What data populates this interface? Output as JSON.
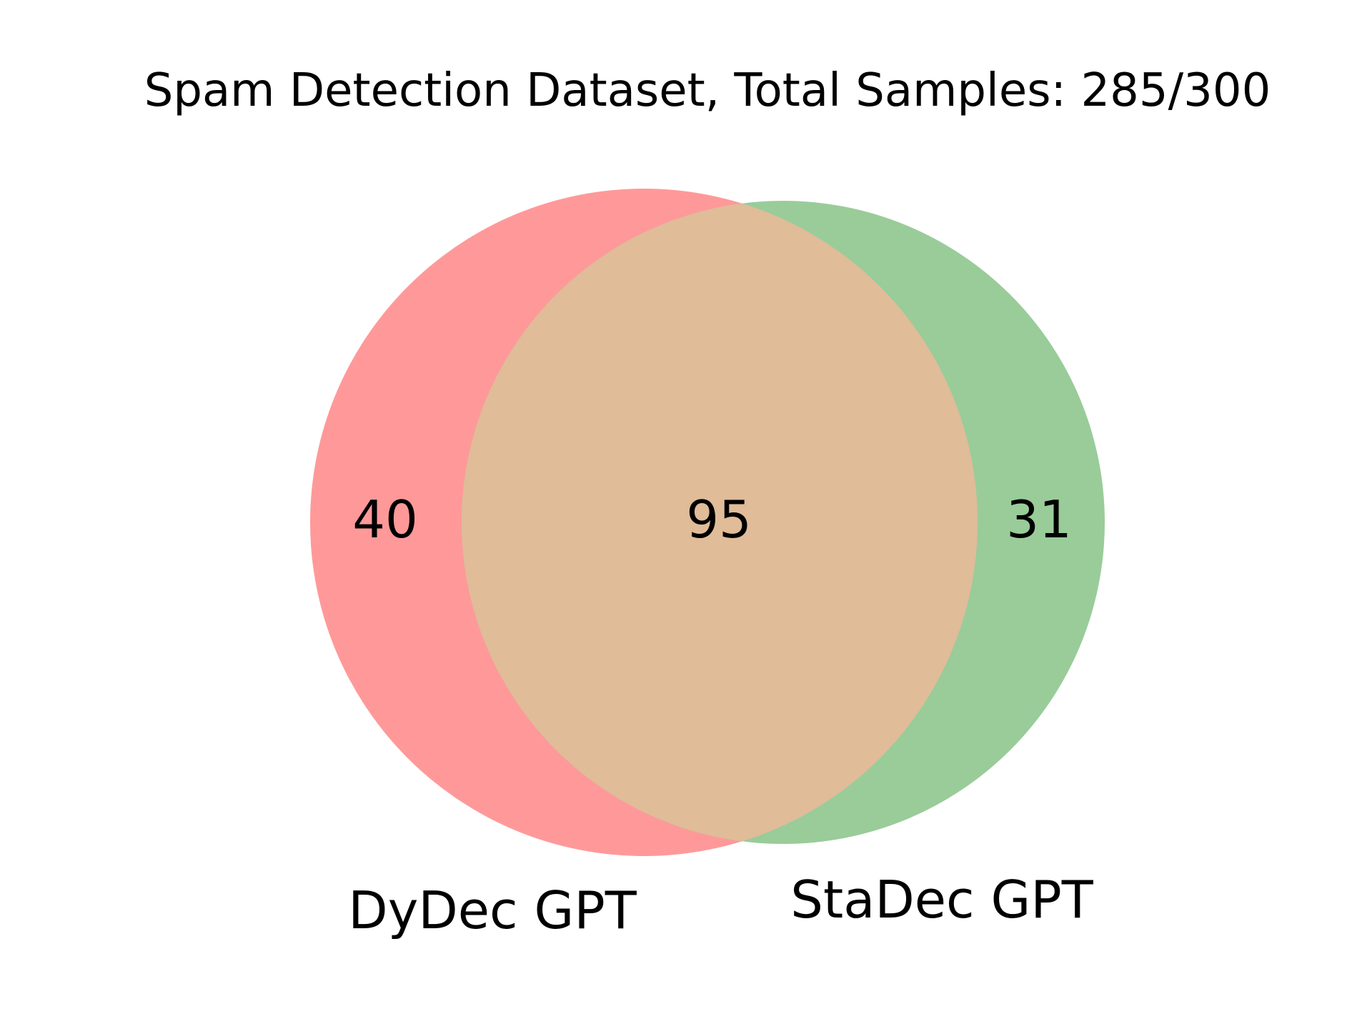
{
  "chart_data": {
    "type": "venn",
    "title": "Spam Detection Dataset, Total Samples: 285/300",
    "sets": [
      {
        "name": "DyDec GPT",
        "color": "#ff9999"
      },
      {
        "name": "StaDec GPT",
        "color": "#99cc99"
      }
    ],
    "overlap_color": "#e0bc99",
    "counts": {
      "only_left": "40",
      "both": "95",
      "only_right": "31"
    }
  }
}
